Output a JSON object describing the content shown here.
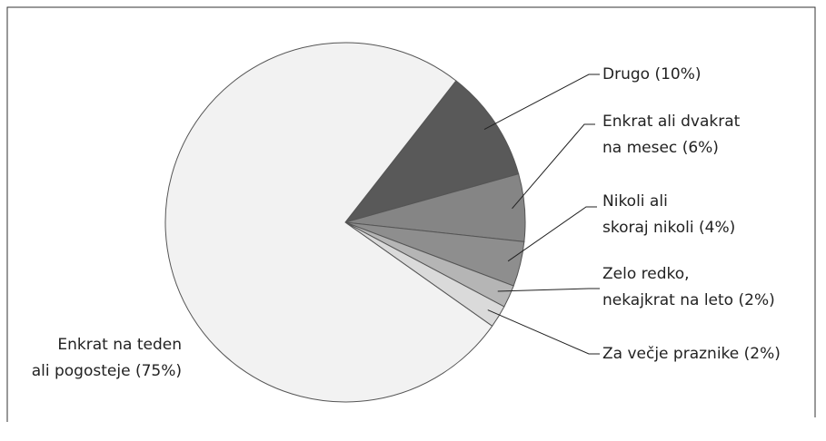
{
  "chart_data": {
    "type": "pie",
    "categories": [
      [
        "Drugo"
      ],
      [
        "Enkrat ali dvakrat",
        "na mesec"
      ],
      [
        "Nikoli ali",
        "skoraj nikoli"
      ],
      [
        "Zelo redko,",
        "nekajkrat na leto"
      ],
      [
        "Za večje praznike"
      ],
      [
        "Enkrat na teden",
        "ali pogosteje"
      ]
    ],
    "values": [
      10,
      6,
      4,
      2,
      2,
      75
    ],
    "value_labels": [
      "(10%)",
      "(6%)",
      "(4%)",
      "(2%)",
      "(2%)",
      "(75%)"
    ],
    "colors": [
      "#595959",
      "#858585",
      "#8e8e8e",
      "#b5b5b5",
      "#dadada",
      "#f2f2f2"
    ]
  }
}
